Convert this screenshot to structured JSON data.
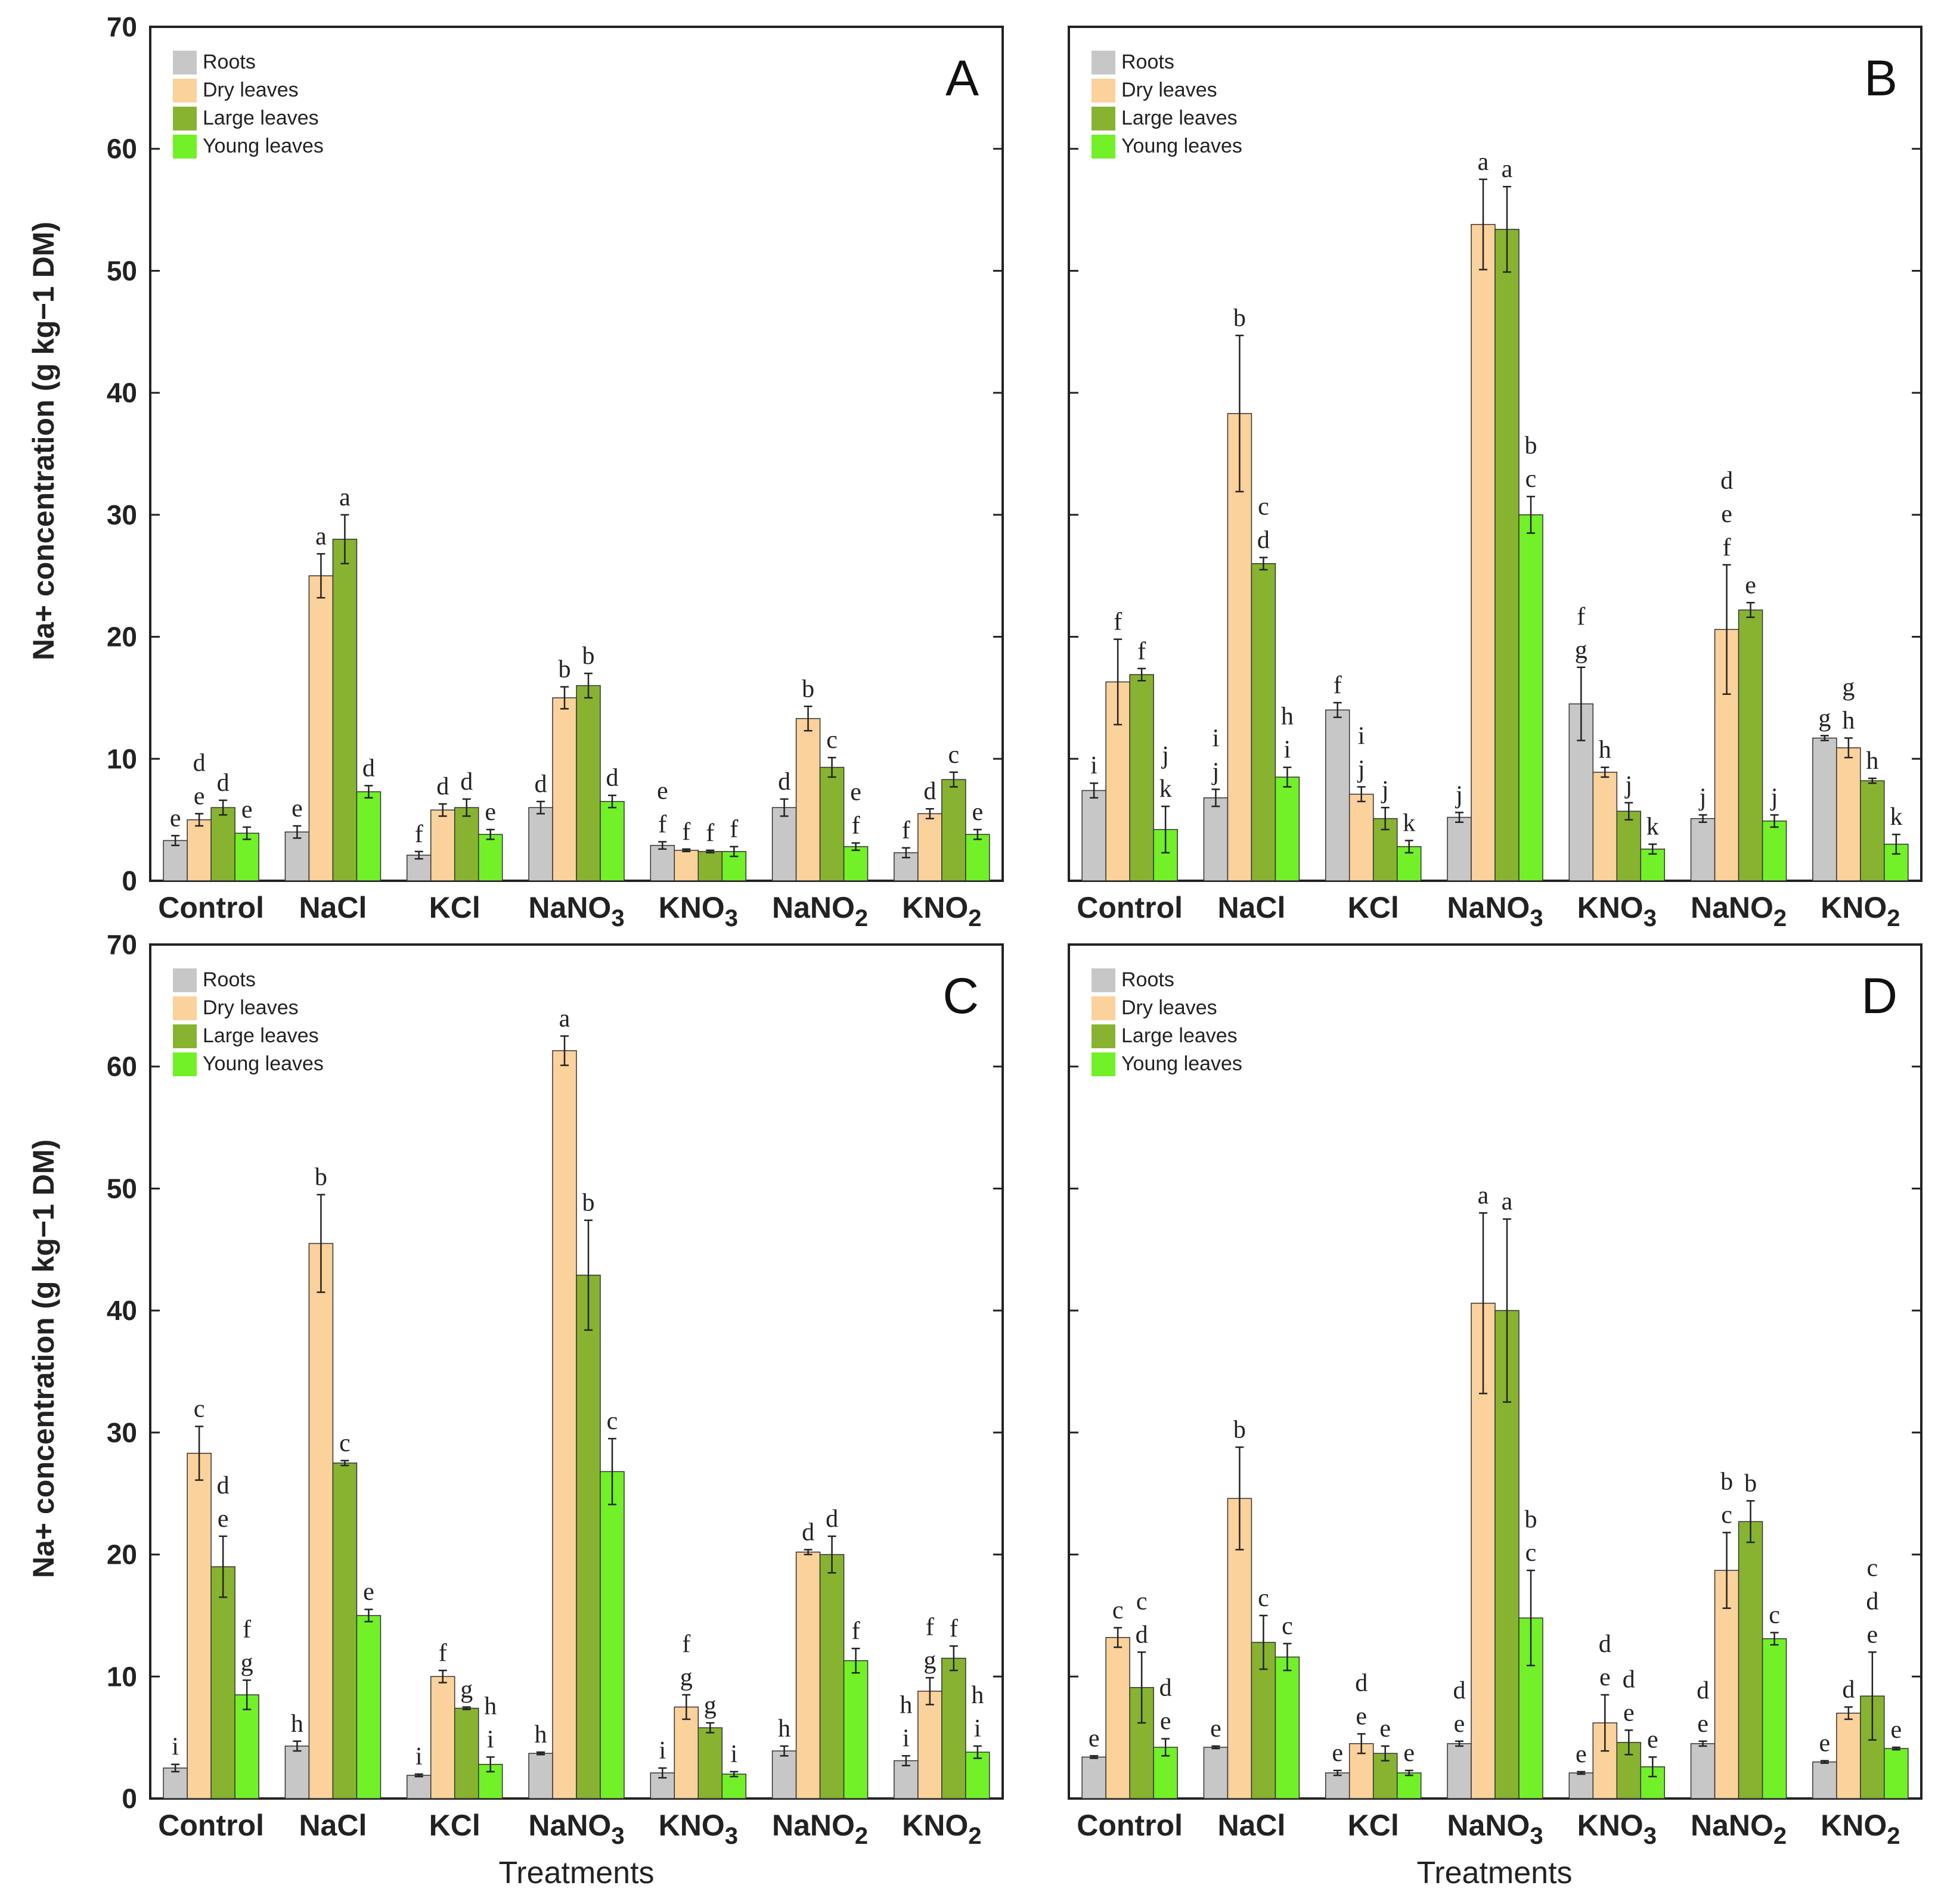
{
  "figure": {
    "ylabel": "Na+ concentration (g kg−1 DM)",
    "xlabel": "Treatments"
  },
  "colors": {
    "roots": "#c7c7c7",
    "dry_leaves": "#fbd19c",
    "large_leaves": "#87b331",
    "young_leaves": "#72f028"
  },
  "chart_data": [
    {
      "panel": "A",
      "type": "bar",
      "title": "",
      "ylabel": "Na+ concentration (g kg−1 DM)",
      "xlabel": "",
      "ylim": [
        0,
        70
      ],
      "yticks": [
        0,
        10,
        20,
        30,
        40,
        50,
        60,
        70
      ],
      "legend": [
        "Roots",
        "Dry leaves",
        "Large leaves",
        "Young leaves"
      ],
      "legend_position": "top-left",
      "categories": [
        "Control",
        "NaCl",
        "KCl",
        "NaNO3",
        "KNO3",
        "NaNO2",
        "KNO2"
      ],
      "series": [
        {
          "name": "Roots",
          "values": [
            3.3,
            4.0,
            2.1,
            6.0,
            2.9,
            6.0,
            2.3
          ],
          "errors": [
            0.4,
            0.5,
            0.3,
            0.5,
            0.3,
            0.7,
            0.4
          ],
          "labels": [
            "e",
            "e",
            "f",
            "d",
            "e f",
            "d",
            "f"
          ]
        },
        {
          "name": "Dry leaves",
          "values": [
            5.0,
            25.0,
            5.8,
            15.0,
            2.5,
            13.3,
            5.5
          ],
          "errors": [
            0.5,
            1.8,
            0.5,
            0.9,
            0.1,
            1.0,
            0.4
          ],
          "labels": [
            "d e",
            "a",
            "d",
            "b",
            "f",
            "b",
            "d"
          ]
        },
        {
          "name": "Large leaves",
          "values": [
            6.0,
            28.0,
            6.0,
            16.0,
            2.4,
            9.3,
            8.3
          ],
          "errors": [
            0.6,
            2.0,
            0.7,
            1.0,
            0.1,
            0.8,
            0.6
          ],
          "labels": [
            "d",
            "a",
            "d",
            "b",
            "f",
            "c",
            "c"
          ]
        },
        {
          "name": "Young leaves",
          "values": [
            3.9,
            7.3,
            3.8,
            6.5,
            2.4,
            2.8,
            3.8
          ],
          "errors": [
            0.5,
            0.5,
            0.4,
            0.5,
            0.4,
            0.3,
            0.4
          ],
          "labels": [
            "e",
            "d",
            "e",
            "d",
            "f",
            "e f",
            "e"
          ]
        }
      ]
    },
    {
      "panel": "B",
      "type": "bar",
      "title": "",
      "ylabel": "",
      "xlabel": "",
      "ylim": [
        0,
        70
      ],
      "yticks": [
        0,
        10,
        20,
        30,
        40,
        50,
        60,
        70
      ],
      "legend": [
        "Roots",
        "Dry leaves",
        "Large leaves",
        "Young leaves"
      ],
      "legend_position": "top-left",
      "categories": [
        "Control",
        "NaCl",
        "KCl",
        "NaNO3",
        "KNO3",
        "NaNO2",
        "KNO2"
      ],
      "series": [
        {
          "name": "Roots",
          "values": [
            7.4,
            6.8,
            14.0,
            5.2,
            14.5,
            5.1,
            11.7
          ],
          "errors": [
            0.6,
            0.7,
            0.6,
            0.4,
            3.0,
            0.3,
            0.2
          ],
          "labels": [
            "i",
            "i j",
            "f",
            "j",
            "f g",
            "j",
            "g"
          ]
        },
        {
          "name": "Dry leaves",
          "values": [
            16.3,
            38.3,
            7.1,
            53.8,
            8.9,
            20.6,
            10.9
          ],
          "errors": [
            3.5,
            6.4,
            0.6,
            3.7,
            0.4,
            5.3,
            0.8
          ],
          "labels": [
            "f",
            "b",
            "i j",
            "a",
            "h",
            "d e f",
            "g h"
          ]
        },
        {
          "name": "Large leaves",
          "values": [
            16.9,
            26.0,
            5.1,
            53.4,
            5.7,
            22.2,
            8.2
          ],
          "errors": [
            0.5,
            0.5,
            0.9,
            3.5,
            0.7,
            0.6,
            0.2
          ],
          "labels": [
            "f",
            "c d",
            "j",
            "a",
            "j",
            "e",
            "h"
          ]
        },
        {
          "name": "Young leaves",
          "values": [
            4.2,
            8.5,
            2.8,
            30.0,
            2.6,
            4.9,
            3.0
          ],
          "errors": [
            1.9,
            0.8,
            0.5,
            1.5,
            0.4,
            0.5,
            0.8
          ],
          "labels": [
            "j k",
            "h i",
            "k",
            "b c",
            "k",
            "j",
            "k"
          ]
        }
      ]
    },
    {
      "panel": "C",
      "type": "bar",
      "title": "",
      "ylabel": "Na+ concentration (g kg−1 DM)",
      "xlabel": "Treatments",
      "ylim": [
        0,
        70
      ],
      "yticks": [
        0,
        10,
        20,
        30,
        40,
        50,
        60,
        70
      ],
      "legend": [
        "Roots",
        "Dry leaves",
        "Large leaves",
        "Young leaves"
      ],
      "legend_position": "top-left",
      "categories": [
        "Control",
        "NaCl",
        "KCl",
        "NaNO3",
        "KNO3",
        "NaNO2",
        "KNO2"
      ],
      "series": [
        {
          "name": "Roots",
          "values": [
            2.5,
            4.3,
            1.9,
            3.7,
            2.1,
            3.9,
            3.1
          ],
          "errors": [
            0.3,
            0.4,
            0.1,
            0.1,
            0.4,
            0.4,
            0.4
          ],
          "labels": [
            "i",
            "h",
            "i",
            "h",
            "i",
            "h",
            "h i"
          ]
        },
        {
          "name": "Dry leaves",
          "values": [
            28.3,
            45.5,
            10.0,
            61.3,
            7.5,
            20.2,
            8.8
          ],
          "errors": [
            2.2,
            4.0,
            0.5,
            1.2,
            1.0,
            0.2,
            1.1
          ],
          "labels": [
            "c",
            "b",
            "f",
            "a",
            "f g",
            "d",
            "f g"
          ]
        },
        {
          "name": "Large leaves",
          "values": [
            19.0,
            27.5,
            7.4,
            42.9,
            5.8,
            20.0,
            11.5
          ],
          "errors": [
            2.5,
            0.2,
            0.1,
            4.5,
            0.4,
            1.5,
            1.0
          ],
          "labels": [
            "d e",
            "c",
            "g",
            "b",
            "g",
            "d",
            "f"
          ]
        },
        {
          "name": "Young leaves",
          "values": [
            8.5,
            15.0,
            2.8,
            26.8,
            2.0,
            11.3,
            3.8
          ],
          "errors": [
            1.2,
            0.5,
            0.6,
            2.7,
            0.2,
            1.0,
            0.5
          ],
          "labels": [
            "f g",
            "e",
            "h i",
            "c",
            "i",
            "f",
            "h i"
          ]
        }
      ]
    },
    {
      "panel": "D",
      "type": "bar",
      "title": "",
      "ylabel": "",
      "xlabel": "Treatments",
      "ylim": [
        0,
        70
      ],
      "yticks": [
        0,
        10,
        20,
        30,
        40,
        50,
        60,
        70
      ],
      "legend": [
        "Roots",
        "Dry leaves",
        "Large leaves",
        "Young leaves"
      ],
      "legend_position": "top-left",
      "categories": [
        "Control",
        "NaCl",
        "KCl",
        "NaNO3",
        "KNO3",
        "NaNO2",
        "KNO2"
      ],
      "series": [
        {
          "name": "Roots",
          "values": [
            3.4,
            4.2,
            2.1,
            4.5,
            2.1,
            4.5,
            3.0
          ],
          "errors": [
            0.1,
            0.1,
            0.2,
            0.2,
            0.1,
            0.2,
            0.1
          ],
          "labels": [
            "e",
            "e",
            "e",
            "d e",
            "e",
            "d e",
            "e"
          ]
        },
        {
          "name": "Dry leaves",
          "values": [
            13.2,
            24.6,
            4.5,
            40.6,
            6.2,
            18.7,
            7.0
          ],
          "errors": [
            0.8,
            4.2,
            0.8,
            7.4,
            2.3,
            3.1,
            0.5
          ],
          "labels": [
            "c",
            "b",
            "d e",
            "a",
            "d e",
            "b c",
            "d"
          ]
        },
        {
          "name": "Large leaves",
          "values": [
            9.1,
            12.8,
            3.7,
            40.0,
            4.6,
            22.7,
            8.4
          ],
          "errors": [
            2.9,
            2.2,
            0.6,
            7.5,
            1.0,
            1.7,
            3.6
          ],
          "labels": [
            "c d",
            "c",
            "e",
            "a",
            "d e",
            "b",
            "c d e"
          ]
        },
        {
          "name": "Young leaves",
          "values": [
            4.2,
            11.6,
            2.1,
            14.8,
            2.6,
            13.1,
            4.1
          ],
          "errors": [
            0.7,
            1.1,
            0.2,
            3.9,
            0.8,
            0.5,
            0.1
          ],
          "labels": [
            "d e",
            "c",
            "e",
            "b c",
            "e",
            "c",
            "e"
          ]
        }
      ]
    }
  ]
}
